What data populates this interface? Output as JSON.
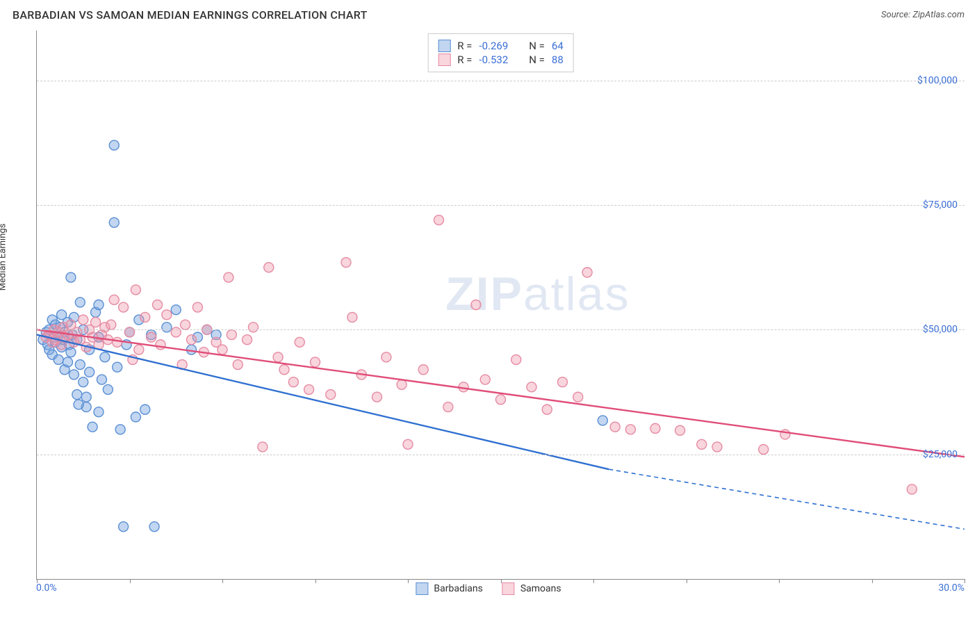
{
  "title": "BARBADIAN VS SAMOAN MEDIAN EARNINGS CORRELATION CHART",
  "source_label": "Source: ",
  "source_name": "ZipAtlas.com",
  "y_axis_label": "Median Earnings",
  "watermark_bold": "ZIP",
  "watermark_light": "atlas",
  "chart": {
    "type": "scatter",
    "xlim": [
      0,
      30
    ],
    "ylim": [
      0,
      110000
    ],
    "x_tick_label_left": "0.0%",
    "x_tick_label_right": "30.0%",
    "x_ticks": [
      0,
      3,
      6,
      9,
      12,
      15,
      18,
      21,
      24,
      27,
      30
    ],
    "y_gridlines": [
      {
        "value": 25000,
        "label": "$25,000"
      },
      {
        "value": 50000,
        "label": "$50,000"
      },
      {
        "value": 75000,
        "label": "$75,000"
      },
      {
        "value": 100000,
        "label": "$100,000"
      }
    ],
    "background_color": "#ffffff",
    "grid_color": "#cccccc",
    "axis_color": "#888888",
    "label_color": "#3b6fd6",
    "marker_radius": 7,
    "marker_stroke_width": 1.4,
    "trend_line_width": 2.4,
    "series": [
      {
        "name": "Barbadians",
        "fill_color": "rgba(120,165,225,0.45)",
        "stroke_color": "#5a8fd4",
        "trend_color": "#2e6fd0",
        "stats": {
          "R": "-0.269",
          "N": "64"
        },
        "trend": {
          "x1": 0,
          "y1": 49000,
          "x2": 18.5,
          "y2": 22000,
          "dash_from_x": 18.5,
          "dash_to_x": 30,
          "dash_to_y": 10000
        },
        "points": [
          [
            0.2,
            48000
          ],
          [
            0.3,
            49500
          ],
          [
            0.35,
            47000
          ],
          [
            0.4,
            50000
          ],
          [
            0.4,
            46000
          ],
          [
            0.5,
            52000
          ],
          [
            0.5,
            45000
          ],
          [
            0.55,
            48500
          ],
          [
            0.6,
            47500
          ],
          [
            0.6,
            51000
          ],
          [
            0.7,
            49000
          ],
          [
            0.7,
            44000
          ],
          [
            0.75,
            50500
          ],
          [
            0.8,
            46500
          ],
          [
            0.8,
            53000
          ],
          [
            0.85,
            48000
          ],
          [
            0.9,
            42000
          ],
          [
            0.9,
            49500
          ],
          [
            1.0,
            51500
          ],
          [
            1.0,
            43500
          ],
          [
            1.05,
            47000
          ],
          [
            1.1,
            45500
          ],
          [
            1.1,
            60500
          ],
          [
            1.15,
            49000
          ],
          [
            1.2,
            41000
          ],
          [
            1.2,
            52500
          ],
          [
            1.3,
            37000
          ],
          [
            1.3,
            48000
          ],
          [
            1.4,
            43000
          ],
          [
            1.4,
            55500
          ],
          [
            1.5,
            39500
          ],
          [
            1.5,
            50000
          ],
          [
            1.6,
            36500
          ],
          [
            1.6,
            34500
          ],
          [
            1.7,
            41500
          ],
          [
            1.7,
            46000
          ],
          [
            1.8,
            30500
          ],
          [
            1.9,
            53500
          ],
          [
            2.0,
            33500
          ],
          [
            2.0,
            48500
          ],
          [
            2.1,
            40000
          ],
          [
            2.2,
            44500
          ],
          [
            2.3,
            38000
          ],
          [
            2.5,
            71500
          ],
          [
            2.5,
            87000
          ],
          [
            2.6,
            42500
          ],
          [
            2.7,
            30000
          ],
          [
            1.35,
            35000
          ],
          [
            2.8,
            10500
          ],
          [
            2.9,
            47000
          ],
          [
            3.0,
            49500
          ],
          [
            3.2,
            32500
          ],
          [
            3.3,
            52000
          ],
          [
            3.5,
            34000
          ],
          [
            3.8,
            10500
          ],
          [
            3.7,
            49000
          ],
          [
            4.2,
            50500
          ],
          [
            4.5,
            54000
          ],
          [
            5.0,
            46000
          ],
          [
            5.2,
            48500
          ],
          [
            5.5,
            50000
          ],
          [
            5.8,
            49000
          ],
          [
            2.0,
            55000
          ],
          [
            18.3,
            31800
          ]
        ]
      },
      {
        "name": "Samoans",
        "fill_color": "rgba(240,150,170,0.40)",
        "stroke_color": "#e58ba2",
        "trend_color": "#e04d78",
        "stats": {
          "R": "-0.532",
          "N": "88"
        },
        "trend": {
          "x1": 0,
          "y1": 50000,
          "x2": 30,
          "y2": 24500
        },
        "points": [
          [
            0.3,
            48500
          ],
          [
            0.4,
            49000
          ],
          [
            0.5,
            47500
          ],
          [
            0.55,
            50000
          ],
          [
            0.6,
            48000
          ],
          [
            0.7,
            49500
          ],
          [
            0.8,
            47000
          ],
          [
            0.85,
            50500
          ],
          [
            0.9,
            48500
          ],
          [
            1.0,
            49000
          ],
          [
            1.1,
            51000
          ],
          [
            1.2,
            47500
          ],
          [
            1.3,
            49500
          ],
          [
            1.4,
            48000
          ],
          [
            1.5,
            52000
          ],
          [
            1.6,
            46500
          ],
          [
            1.7,
            50000
          ],
          [
            1.8,
            48500
          ],
          [
            1.9,
            51500
          ],
          [
            2.0,
            47000
          ],
          [
            2.1,
            49000
          ],
          [
            2.2,
            50500
          ],
          [
            2.3,
            48000
          ],
          [
            2.4,
            51000
          ],
          [
            2.5,
            56000
          ],
          [
            2.6,
            47500
          ],
          [
            2.8,
            54500
          ],
          [
            3.0,
            49500
          ],
          [
            3.2,
            58000
          ],
          [
            3.3,
            46000
          ],
          [
            3.5,
            52500
          ],
          [
            3.7,
            48500
          ],
          [
            3.9,
            55000
          ],
          [
            4.0,
            47000
          ],
          [
            4.2,
            53000
          ],
          [
            4.5,
            49500
          ],
          [
            4.8,
            51000
          ],
          [
            5.0,
            48000
          ],
          [
            5.2,
            54500
          ],
          [
            5.5,
            50000
          ],
          [
            5.8,
            47500
          ],
          [
            6.0,
            46000
          ],
          [
            6.2,
            60500
          ],
          [
            6.5,
            43000
          ],
          [
            6.8,
            48000
          ],
          [
            7.0,
            50500
          ],
          [
            7.3,
            26500
          ],
          [
            7.5,
            62500
          ],
          [
            7.8,
            44500
          ],
          [
            8.0,
            42000
          ],
          [
            8.3,
            39500
          ],
          [
            8.5,
            47500
          ],
          [
            8.8,
            38000
          ],
          [
            9.0,
            43500
          ],
          [
            9.5,
            37000
          ],
          [
            10.0,
            63500
          ],
          [
            10.2,
            52500
          ],
          [
            10.5,
            41000
          ],
          [
            11.0,
            36500
          ],
          [
            11.3,
            44500
          ],
          [
            11.8,
            39000
          ],
          [
            12.0,
            27000
          ],
          [
            12.5,
            42000
          ],
          [
            13.0,
            72000
          ],
          [
            13.3,
            34500
          ],
          [
            13.8,
            38500
          ],
          [
            14.2,
            55000
          ],
          [
            14.5,
            40000
          ],
          [
            15.0,
            36000
          ],
          [
            15.5,
            44000
          ],
          [
            16.0,
            38500
          ],
          [
            16.5,
            34000
          ],
          [
            17.0,
            39500
          ],
          [
            17.5,
            36500
          ],
          [
            17.8,
            61500
          ],
          [
            18.7,
            30500
          ],
          [
            19.2,
            30000
          ],
          [
            20.0,
            30200
          ],
          [
            20.8,
            29800
          ],
          [
            21.5,
            27000
          ],
          [
            22.0,
            26500
          ],
          [
            23.5,
            26000
          ],
          [
            24.2,
            29000
          ],
          [
            6.3,
            49000
          ],
          [
            4.7,
            43000
          ],
          [
            3.1,
            44000
          ],
          [
            28.3,
            18000
          ],
          [
            5.4,
            45500
          ]
        ]
      }
    ],
    "bottom_legend": [
      {
        "swatch_fill": "rgba(120,165,225,0.45)",
        "swatch_stroke": "#5a8fd4",
        "label": "Barbadians"
      },
      {
        "swatch_fill": "rgba(240,150,170,0.40)",
        "swatch_stroke": "#e58ba2",
        "label": "Samoans"
      }
    ]
  }
}
